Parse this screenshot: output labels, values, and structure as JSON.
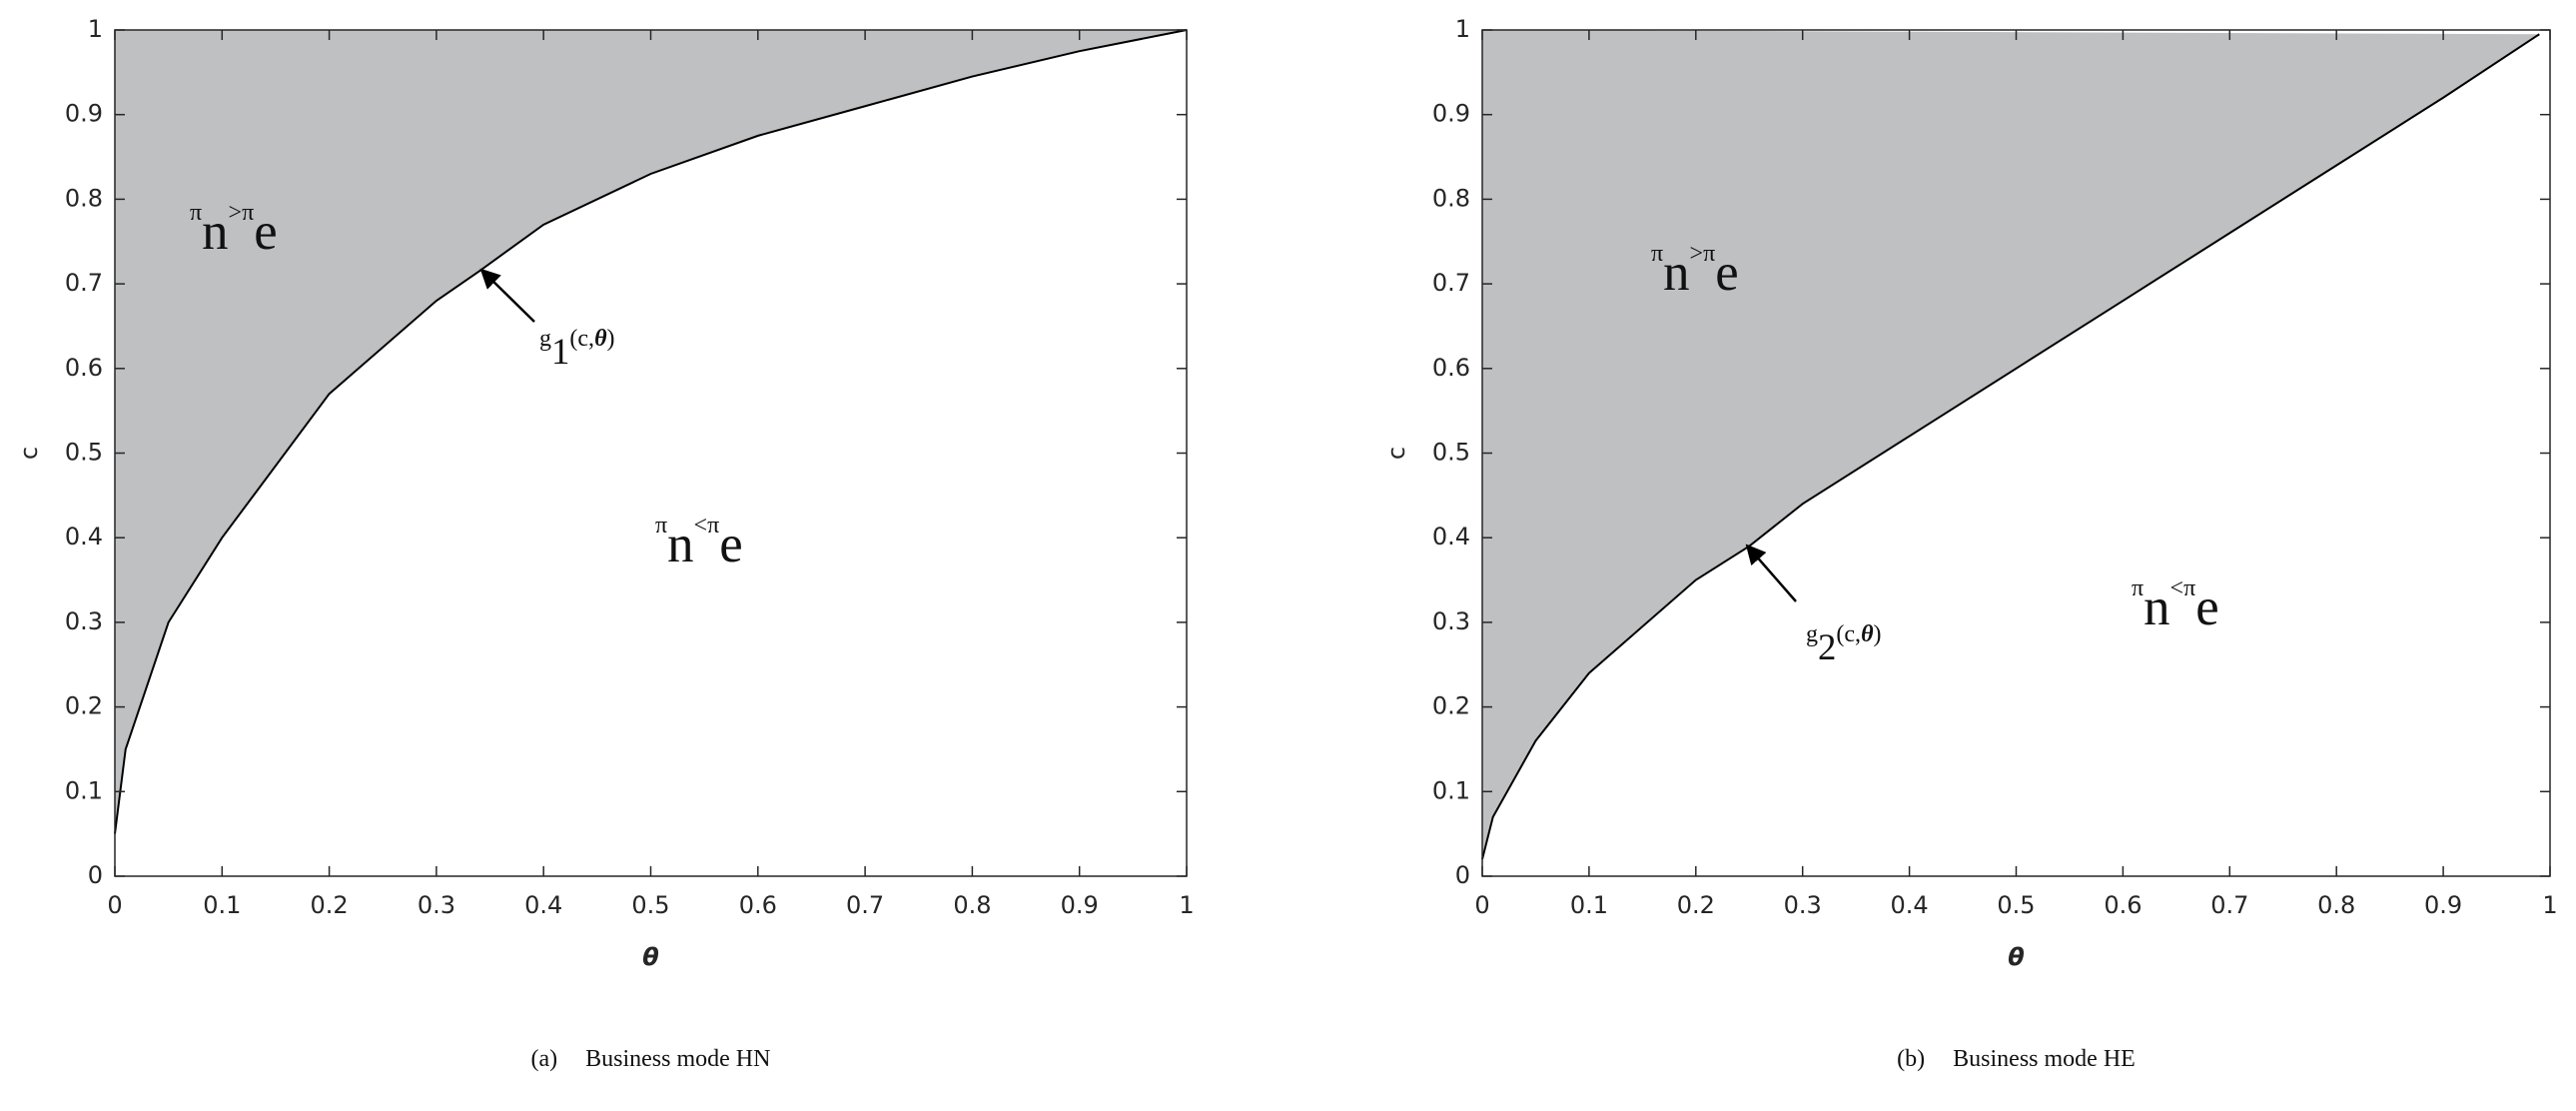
{
  "chart_data": [
    {
      "type": "area",
      "xlabel": "θ",
      "ylabel": "c",
      "label": "(a)",
      "caption": "Business mode HN",
      "x": [
        0,
        0.01,
        0.05,
        0.1,
        0.2,
        0.3,
        0.34,
        0.4,
        0.5,
        0.6,
        0.7,
        0.8,
        0.9,
        1
      ],
      "series": [
        {
          "name": "g1(c,θ)",
          "color": "#bfc0c2",
          "values": [
            0.05,
            0.15,
            0.3,
            0.4,
            0.57,
            0.68,
            0.715,
            0.77,
            0.83,
            0.875,
            0.91,
            0.945,
            0.975,
            1
          ]
        }
      ],
      "xlim": [
        0,
        1
      ],
      "ylim": [
        0,
        1
      ],
      "xticks": [
        0,
        0.1,
        0.2,
        0.3,
        0.4,
        0.5,
        0.6,
        0.7,
        0.8,
        0.9,
        1
      ],
      "yticks": [
        0,
        0.1,
        0.2,
        0.3,
        0.4,
        0.5,
        0.6,
        0.7,
        0.8,
        0.9,
        1
      ],
      "upper_region": [
        "π",
        "n",
        ">",
        "π",
        "e"
      ],
      "lower_region": [
        "π",
        "n",
        "<",
        "π",
        "e"
      ],
      "curve_label": [
        "g",
        "1",
        "(c,",
        "θ",
        ")"
      ]
    },
    {
      "type": "area",
      "xlabel": "θ",
      "ylabel": "c",
      "label": "(b)",
      "caption": "Business mode HE",
      "x": [
        0,
        0.01,
        0.05,
        0.1,
        0.2,
        0.25,
        0.3,
        0.4,
        0.5,
        0.6,
        0.7,
        0.8,
        0.9,
        0.99
      ],
      "series": [
        {
          "name": "g2(c,θ)",
          "color": "#bfc0c2",
          "values": [
            0.02,
            0.07,
            0.16,
            0.24,
            0.35,
            0.39,
            0.44,
            0.52,
            0.6,
            0.68,
            0.76,
            0.84,
            0.92,
            0.995
          ]
        }
      ],
      "xlim": [
        0,
        1
      ],
      "ylim": [
        0,
        1
      ],
      "xticks": [
        0,
        0.1,
        0.2,
        0.3,
        0.4,
        0.5,
        0.6,
        0.7,
        0.8,
        0.9,
        1
      ],
      "yticks": [
        0,
        0.1,
        0.2,
        0.3,
        0.4,
        0.5,
        0.6,
        0.7,
        0.8,
        0.9,
        1
      ],
      "upper_region": [
        "π",
        "n",
        ">",
        "π",
        "e"
      ],
      "lower_region": [
        "π",
        "n",
        "<",
        "π",
        "e"
      ],
      "curve_label": [
        "g",
        "2",
        "(c,",
        "θ",
        ")"
      ]
    }
  ]
}
